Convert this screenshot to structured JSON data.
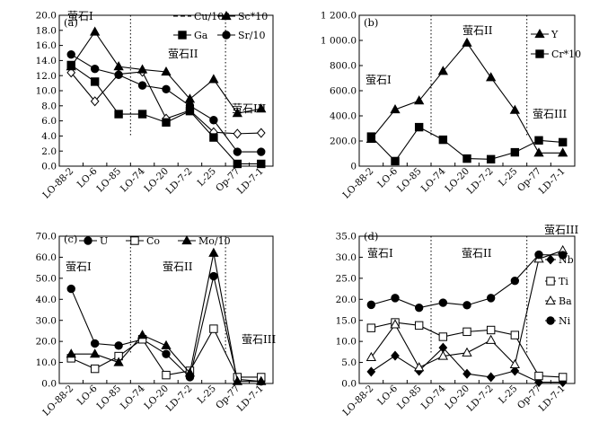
{
  "chart_data": [
    {
      "type": "line",
      "panel_label": "(a)",
      "categories": [
        "LO-88-2",
        "LO-6",
        "LO-85",
        "LO-74",
        "LO-20",
        "LD-7-2",
        "L-25",
        "Op-77",
        "LD-7-1"
      ],
      "ylim": [
        0,
        20
      ],
      "yticks": [
        "0.0",
        "2.0",
        "4.0",
        "6.0",
        "8.0",
        "10.0",
        "12.0",
        "14.0",
        "16.0",
        "18.0",
        "20.0"
      ],
      "series": [
        {
          "name": "Cu/100",
          "marker": "open-diamond",
          "values": [
            12.4,
            8.6,
            12.2,
            12.5,
            6.3,
            7.4,
            4.5,
            4.3,
            4.4
          ]
        },
        {
          "name": "Ga",
          "marker": "filled-square",
          "values": [
            13.4,
            11.2,
            6.9,
            6.9,
            5.8,
            7.3,
            3.8,
            0.3,
            0.3
          ]
        },
        {
          "name": "Sc*10",
          "marker": "filled-triangle",
          "values": [
            13.2,
            17.8,
            13.2,
            12.8,
            12.5,
            8.9,
            11.5,
            7.0,
            7.6
          ]
        },
        {
          "name": "Sr/10",
          "marker": "filled-circle",
          "values": [
            14.8,
            12.9,
            12.1,
            10.7,
            10.2,
            8.0,
            6.1,
            1.9,
            1.9
          ]
        }
      ],
      "zones": [
        "萤石I",
        "萤石II",
        "萤石III"
      ]
    },
    {
      "type": "line",
      "panel_label": "(b)",
      "categories": [
        "LO-88-2",
        "LO-6",
        "LO-85",
        "LO-74",
        "LO-20",
        "LD-7-2",
        "L-25",
        "Op-77",
        "LD-7-1"
      ],
      "ylim": [
        0,
        1200
      ],
      "yticks": [
        "0",
        "200.0",
        "400.0",
        "600.0",
        "800.0",
        "1 000.0",
        "1 200.0"
      ],
      "series": [
        {
          "name": "Y",
          "marker": "filled-triangle",
          "values": [
            215,
            450,
            520,
            755,
            980,
            705,
            445,
            105,
            105
          ]
        },
        {
          "name": "Cr*10",
          "marker": "filled-square",
          "values": [
            235,
            40,
            310,
            210,
            60,
            55,
            110,
            205,
            190
          ]
        }
      ],
      "zones": [
        "萤石I",
        "萤石II",
        "萤石III"
      ]
    },
    {
      "type": "line",
      "panel_label": "(c)",
      "categories": [
        "LO-88-2",
        "LO-6",
        "LO-85",
        "LO-74",
        "LO-20",
        "LD-7-2",
        "L-25",
        "Op-77",
        "LD-7-1"
      ],
      "ylim": [
        0,
        70
      ],
      "yticks": [
        "0.0",
        "10.0",
        "20.0",
        "30.0",
        "40.0",
        "50.0",
        "60.0",
        "70.0"
      ],
      "series": [
        {
          "name": "U",
          "marker": "filled-circle",
          "values": [
            45,
            19,
            18,
            21,
            14,
            3,
            51,
            2,
            1
          ]
        },
        {
          "name": "Co",
          "marker": "open-square",
          "values": [
            12,
            7,
            13,
            21,
            4,
            6,
            26,
            3,
            3
          ]
        },
        {
          "name": "Mo/10",
          "marker": "filled-triangle",
          "values": [
            14,
            14,
            10,
            23,
            18,
            5,
            62,
            1,
            1
          ]
        }
      ],
      "zones": [
        "萤石I",
        "萤石II",
        "萤石III"
      ]
    },
    {
      "type": "line",
      "panel_label": "(d)",
      "categories": [
        "LO-88-2",
        "LO-6",
        "LO-85",
        "LO-74",
        "LO-20",
        "LD-7-2",
        "L-25",
        "Op-77",
        "LD-7-1"
      ],
      "ylim": [
        0,
        35
      ],
      "yticks": [
        "0.0",
        "5.0",
        "10.0",
        "15.0",
        "20.0",
        "25.0",
        "30.0",
        "35.0"
      ],
      "series": [
        {
          "name": "Nb",
          "marker": "filled-diamond",
          "values": [
            2.8,
            6.6,
            3.0,
            8.5,
            2.3,
            1.5,
            3.0,
            0.3,
            0.3
          ]
        },
        {
          "name": "Ti",
          "marker": "open-square",
          "values": [
            13.2,
            14.5,
            13.8,
            11.1,
            12.3,
            12.7,
            11.5,
            1.8,
            1.5
          ]
        },
        {
          "name": "Ba",
          "marker": "open-triangle",
          "values": [
            6.2,
            14.0,
            3.8,
            6.5,
            7.3,
            10.3,
            4.5,
            29.6,
            31.6
          ]
        },
        {
          "name": "Ni",
          "marker": "filled-circle",
          "values": [
            18.7,
            20.3,
            18.0,
            19.2,
            18.6,
            20.3,
            24.4,
            30.6,
            30.5
          ]
        }
      ],
      "zones": [
        "萤石I",
        "萤石II",
        "萤石III"
      ]
    }
  ]
}
